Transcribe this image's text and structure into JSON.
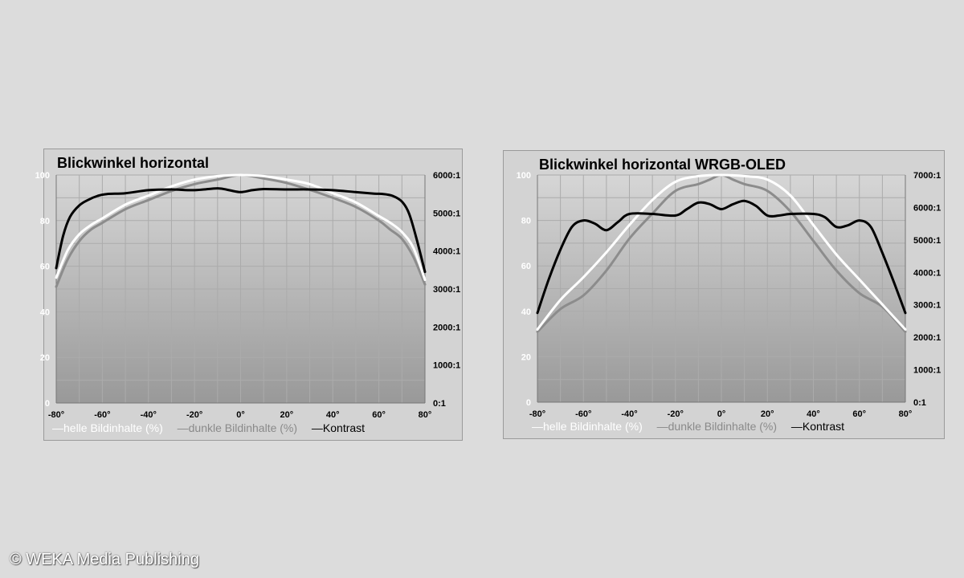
{
  "copyright": "©  WEKA Media Publishing",
  "chart_data": [
    {
      "type": "line",
      "title": "Blickwinkel horizontal",
      "x_ticks": [
        "-80°",
        "-60°",
        "-40°",
        "-20°",
        "0°",
        "20°",
        "40°",
        "60°",
        "80°"
      ],
      "x_range": [
        -80,
        80
      ],
      "y_left_ticks": [
        "0",
        "20",
        "40",
        "60",
        "80",
        "100"
      ],
      "y_left_range": [
        0,
        100
      ],
      "y_right_ticks": [
        "0:1",
        "1000:1",
        "2000:1",
        "3000:1",
        "4000:1",
        "5000:1",
        "6000:1"
      ],
      "y_right_range": [
        0,
        6000
      ],
      "grid": true,
      "legend": [
        "—helle Bildinhalte (%)",
        "—dunkle Bildinhalte (%)",
        "—Kontrast"
      ],
      "legend_position": "bottom",
      "colors": {
        "bright": "#ffffff",
        "dark": "#8c8c8c",
        "contrast": "#000000"
      },
      "series": [
        {
          "name": "helle Bildinhalte (%)",
          "axis": "left",
          "x": [
            -80,
            -75,
            -70,
            -65,
            -60,
            -50,
            -40,
            -30,
            -20,
            -10,
            0,
            10,
            20,
            30,
            40,
            50,
            60,
            65,
            70,
            75,
            80
          ],
          "y": [
            55,
            67,
            74,
            78,
            81,
            87,
            91,
            95,
            98,
            99.5,
            100,
            99.5,
            98,
            96,
            92,
            88,
            82,
            79,
            75,
            68,
            54
          ]
        },
        {
          "name": "dunkle Bildinhalte (%)",
          "axis": "left",
          "x": [
            -80,
            -75,
            -70,
            -65,
            -60,
            -50,
            -40,
            -30,
            -20,
            -10,
            0,
            10,
            20,
            30,
            40,
            50,
            60,
            65,
            70,
            75,
            80
          ],
          "y": [
            51,
            63,
            71,
            76,
            79,
            85,
            89,
            93,
            96,
            98,
            100,
            98.5,
            96.5,
            93.5,
            90,
            86,
            80,
            76,
            72,
            64,
            52
          ]
        },
        {
          "name": "Kontrast",
          "axis": "right",
          "x": [
            -80,
            -77,
            -74,
            -70,
            -66,
            -62,
            -58,
            -50,
            -40,
            -30,
            -20,
            -10,
            -5,
            0,
            5,
            10,
            20,
            30,
            40,
            50,
            58,
            62,
            66,
            70,
            73,
            76,
            80
          ],
          "y": [
            3550,
            4400,
            4900,
            5200,
            5350,
            5450,
            5500,
            5520,
            5600,
            5620,
            5600,
            5650,
            5600,
            5550,
            5600,
            5630,
            5620,
            5620,
            5600,
            5550,
            5510,
            5500,
            5450,
            5300,
            5000,
            4400,
            3450
          ]
        }
      ]
    },
    {
      "type": "line",
      "title": "Blickwinkel horizontal WRGB-OLED",
      "x_ticks": [
        "-80°",
        "-60°",
        "-40°",
        "-20°",
        "0°",
        "20°",
        "40°",
        "60°",
        "80°"
      ],
      "x_range": [
        -80,
        80
      ],
      "y_left_ticks": [
        "0",
        "20",
        "40",
        "60",
        "80",
        "100"
      ],
      "y_left_range": [
        0,
        100
      ],
      "y_right_ticks": [
        "0:1",
        "1000:1",
        "2000:1",
        "3000:1",
        "4000:1",
        "5000:1",
        "6000:1",
        "7000:1"
      ],
      "y_right_range": [
        0,
        7000
      ],
      "grid": true,
      "legend": [
        "—helle Bildinhalte (%)",
        "—dunkle Bildinhalte (%)",
        "—Kontrast"
      ],
      "legend_position": "bottom",
      "colors": {
        "bright": "#ffffff",
        "dark": "#8c8c8c",
        "contrast": "#000000"
      },
      "series": [
        {
          "name": "helle Bildinhalte (%)",
          "axis": "left",
          "x": [
            -80,
            -70,
            -60,
            -50,
            -40,
            -30,
            -20,
            -10,
            0,
            10,
            20,
            30,
            40,
            50,
            60,
            70,
            80
          ],
          "y": [
            32,
            45,
            55,
            66,
            78,
            89,
            97,
            99.5,
            100,
            99.5,
            98,
            91,
            78,
            65,
            54,
            43,
            32
          ]
        },
        {
          "name": "dunkle Bildinhalte (%)",
          "axis": "left",
          "x": [
            -80,
            -70,
            -60,
            -50,
            -40,
            -30,
            -20,
            -10,
            -5,
            0,
            5,
            10,
            20,
            30,
            40,
            50,
            60,
            70,
            80
          ],
          "y": [
            31,
            41,
            47,
            58,
            72,
            83,
            93,
            96,
            98,
            100,
            98,
            96,
            93,
            84,
            71,
            58,
            48,
            42,
            31
          ]
        },
        {
          "name": "Kontrast",
          "axis": "right",
          "x": [
            -80,
            -75,
            -70,
            -65,
            -60,
            -55,
            -50,
            -45,
            -40,
            -30,
            -20,
            -15,
            -10,
            -5,
            0,
            5,
            10,
            15,
            20,
            25,
            30,
            40,
            45,
            50,
            55,
            60,
            65,
            70,
            75,
            80
          ],
          "y": [
            2750,
            3800,
            4700,
            5400,
            5600,
            5500,
            5300,
            5550,
            5800,
            5800,
            5750,
            5950,
            6150,
            6100,
            5950,
            6100,
            6200,
            6050,
            5750,
            5750,
            5800,
            5800,
            5700,
            5400,
            5450,
            5600,
            5400,
            4600,
            3700,
            2750
          ]
        }
      ]
    }
  ]
}
